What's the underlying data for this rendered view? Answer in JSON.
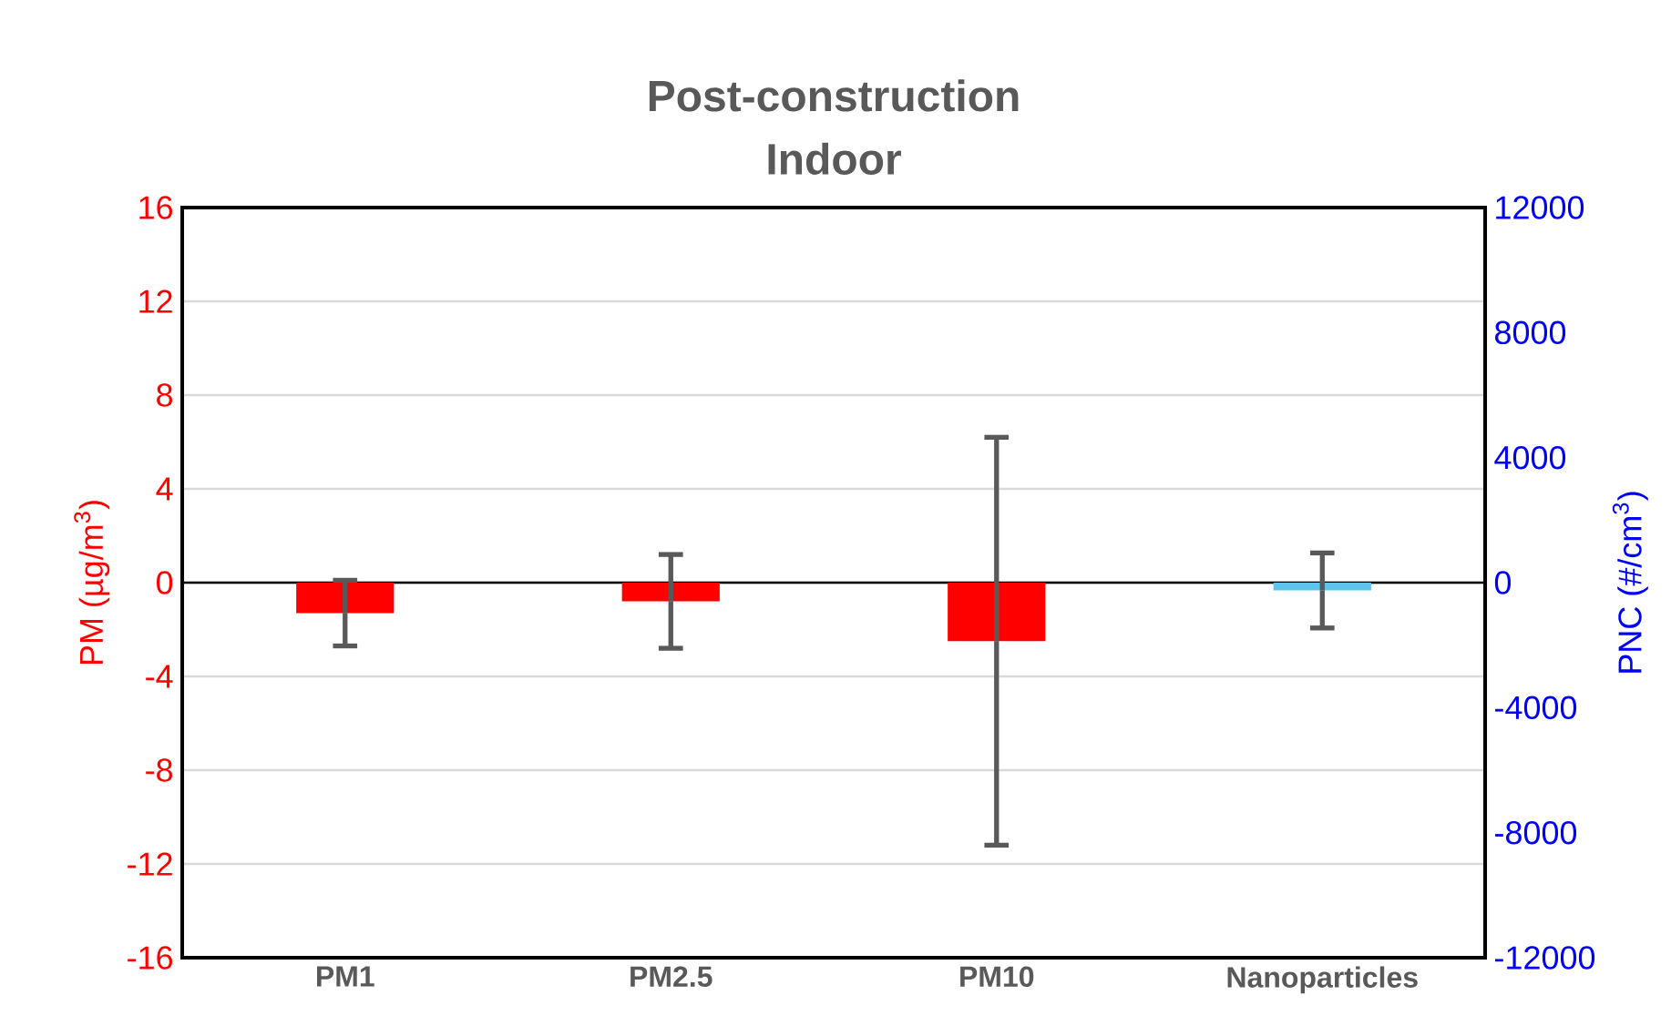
{
  "chart_data": {
    "type": "bar",
    "title": "Post-construction",
    "subtitle": "Indoor",
    "categories": [
      "PM1",
      "PM2.5",
      "PM10",
      "Nanoparticles"
    ],
    "ylabel": "PM (µg/m$^{3}$)",
    "y2label": "PNC (#/cm$^{3}$)",
    "ylim": [
      -16,
      16
    ],
    "yticks": [
      -16,
      -12,
      -8,
      -4,
      0,
      4,
      8,
      12,
      16
    ],
    "y2lim": [
      -12000,
      12000
    ],
    "y2ticks": [
      -12000,
      -8000,
      -4000,
      0,
      4000,
      8000,
      12000
    ],
    "grid": "y",
    "series": [
      {
        "color": "#ff0000",
        "values": [
          -1.3,
          -0.8,
          -2.5,
          null
        ],
        "errors": [
          1.4,
          2.0,
          8.7,
          null
        ]
      },
      {
        "color": "#5fc4ec",
        "axis": "y2",
        "values": [
          null,
          null,
          null,
          -250
        ],
        "errors": [
          null,
          null,
          null,
          1200
        ]
      }
    ]
  }
}
